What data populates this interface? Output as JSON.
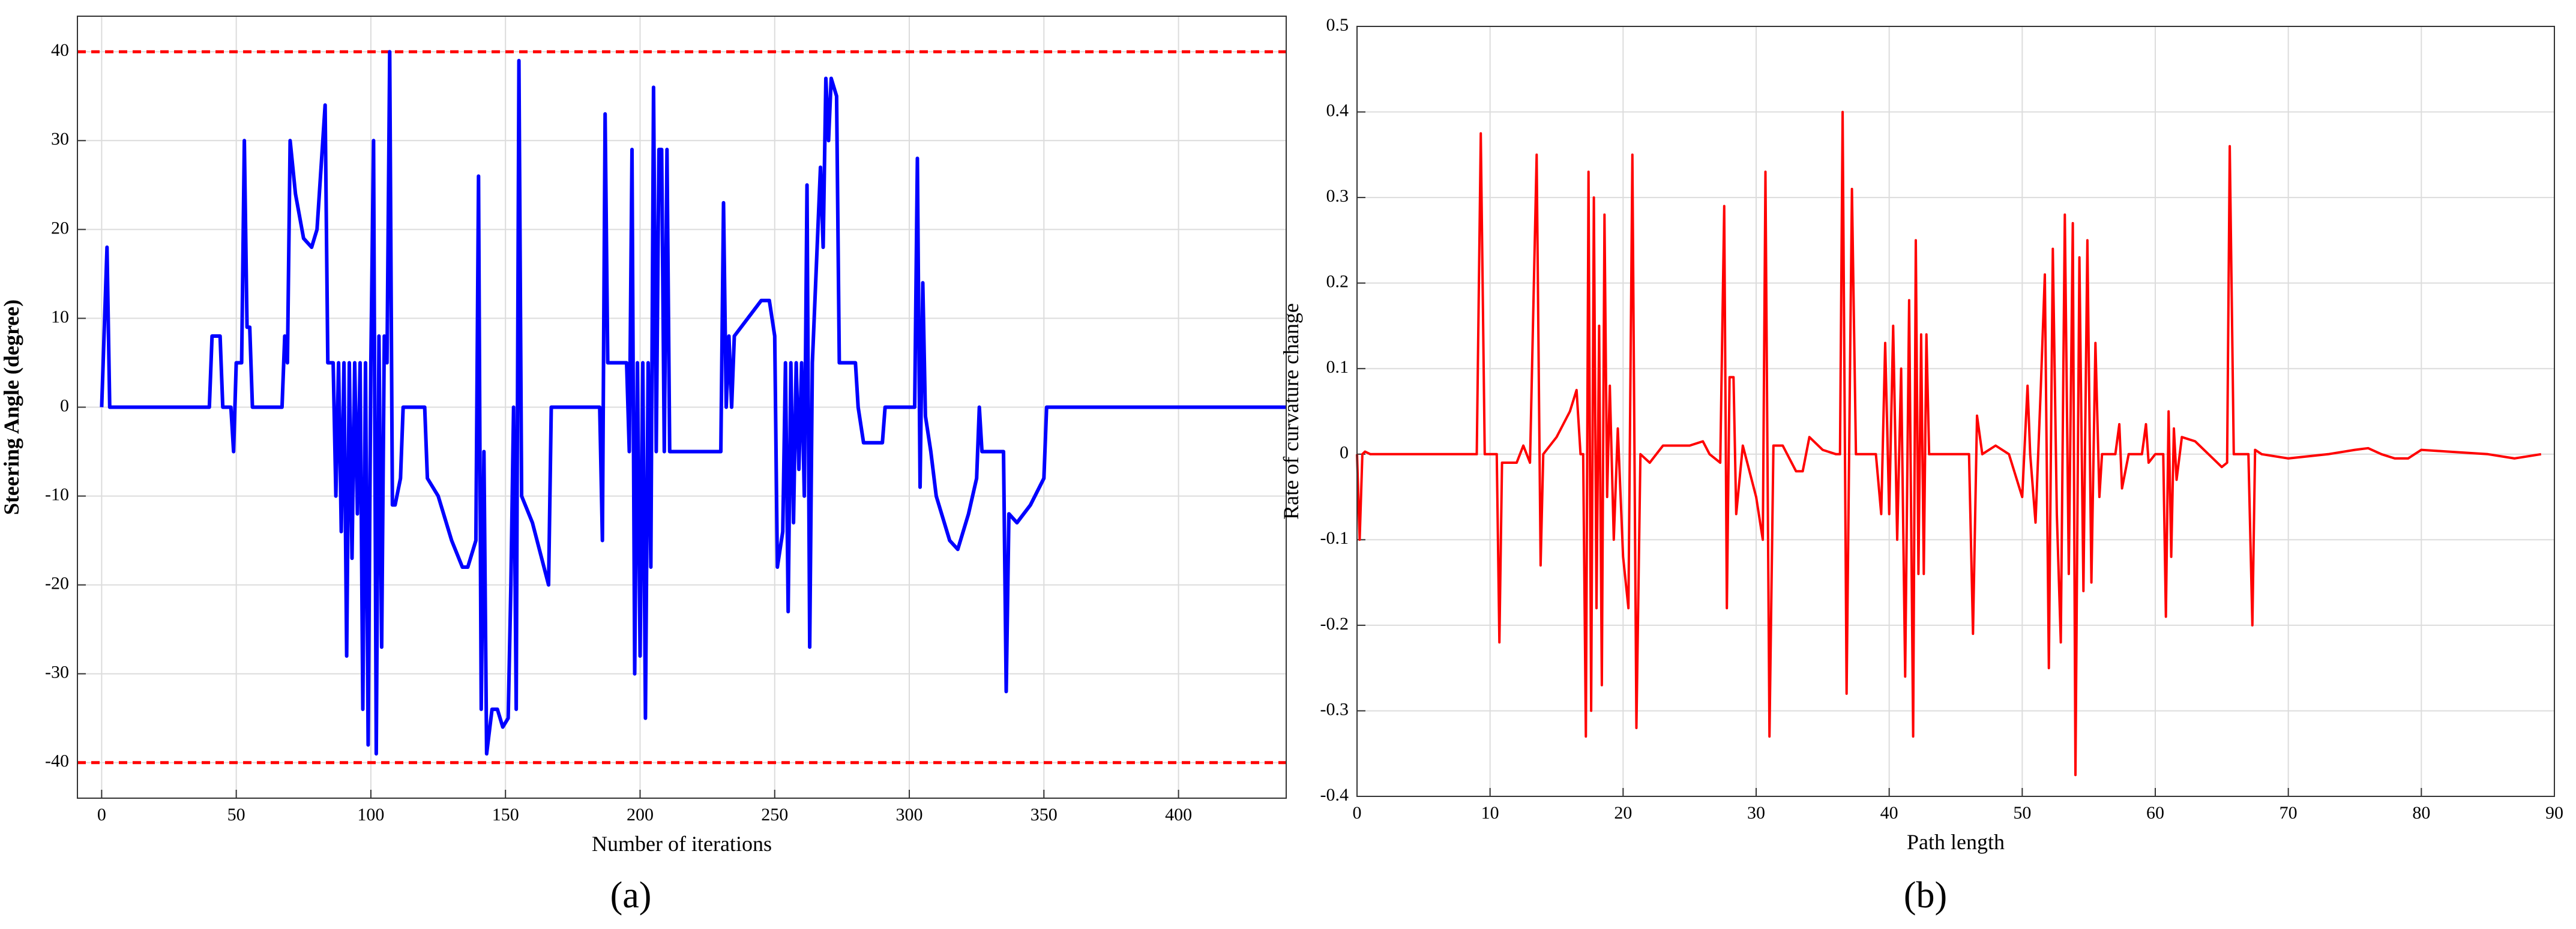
{
  "chart_data": [
    {
      "type": "line",
      "caption": "(a)",
      "xlabel": "Number of iterations",
      "ylabel": "Steering Angle (degree)",
      "xlim": [
        -9,
        440
      ],
      "ylim": [
        -44,
        44
      ],
      "xticks": [
        0,
        50,
        100,
        150,
        200,
        250,
        300,
        350,
        400
      ],
      "yticks": [
        -40,
        -30,
        -20,
        -10,
        0,
        10,
        20,
        30,
        40
      ],
      "grid": true,
      "color": "#0000ff",
      "hlines": [
        {
          "value": 40,
          "color": "#ff0000",
          "style": "dashed"
        },
        {
          "value": -40,
          "color": "#ff0000",
          "style": "dashed"
        }
      ],
      "x": [
        0,
        2,
        3,
        40,
        41,
        44,
        45,
        48,
        49,
        50,
        52,
        53,
        54,
        55,
        56,
        67,
        68,
        69,
        70,
        72,
        75,
        78,
        80,
        83,
        84,
        86,
        87,
        88,
        89,
        90,
        91,
        92,
        93,
        94,
        95,
        96,
        97,
        98,
        99,
        100,
        101,
        102,
        103,
        104,
        105,
        106,
        107,
        108,
        109,
        111,
        112,
        120,
        121,
        125,
        130,
        134,
        136,
        139,
        140,
        141,
        142,
        143,
        145,
        147,
        149,
        151,
        152,
        153,
        154,
        155,
        156,
        160,
        166,
        167,
        185,
        186,
        187,
        188,
        195,
        196,
        197,
        198,
        199,
        200,
        201,
        202,
        203,
        204,
        205,
        206,
        207,
        208,
        209,
        210,
        211,
        230,
        231,
        232,
        233,
        234,
        235,
        240,
        245,
        248,
        250,
        251,
        253,
        254,
        255,
        256,
        257,
        258,
        259,
        260,
        261,
        262,
        263,
        264,
        267,
        268,
        269,
        270,
        271,
        273,
        274,
        280,
        281,
        283,
        290,
        291,
        302,
        303,
        304,
        305,
        306,
        308,
        310,
        315,
        318,
        322,
        325,
        326,
        327,
        335,
        336,
        337,
        340,
        345,
        350,
        351,
        440
      ],
      "values": [
        0,
        18,
        0,
        0,
        8,
        8,
        0,
        0,
        -5,
        5,
        5,
        30,
        9,
        9,
        0,
        0,
        8,
        5,
        30,
        24,
        19,
        18,
        20,
        34,
        5,
        5,
        -10,
        5,
        -14,
        5,
        -28,
        5,
        -17,
        5,
        -12,
        5,
        -34,
        5,
        -38,
        5,
        30,
        -39,
        8,
        -27,
        8,
        5,
        40,
        -11,
        -11,
        -8,
        0,
        0,
        -8,
        -10,
        -15,
        -18,
        -18,
        -15,
        26,
        -34,
        -5,
        -39,
        -34,
        -34,
        -36,
        -35,
        -20,
        0,
        -34,
        39,
        -10,
        -13,
        -20,
        0,
        0,
        -15,
        33,
        5,
        5,
        -5,
        29,
        -30,
        5,
        -28,
        5,
        -35,
        5,
        -18,
        36,
        -5,
        29,
        29,
        -5,
        29,
        -5,
        -5,
        23,
        0,
        8,
        0,
        8,
        10,
        12,
        12,
        8,
        -18,
        -14,
        5,
        -23,
        5,
        -13,
        5,
        -7,
        5,
        -10,
        25,
        -27,
        5,
        27,
        18,
        37,
        30,
        37,
        35,
        5,
        5,
        0,
        -4,
        -4,
        0,
        0,
        28,
        -9,
        14,
        -1,
        -5,
        -10,
        -15,
        -16,
        -12,
        -8,
        0,
        -5,
        -5,
        -32,
        -12,
        -13,
        -11,
        -8,
        0,
        0
      ]
    },
    {
      "type": "line",
      "caption": "(b)",
      "xlabel": "Path length",
      "ylabel": "Rate of curvature change",
      "xlim": [
        0,
        90
      ],
      "ylim": [
        -0.4,
        0.5
      ],
      "xticks": [
        0,
        10,
        20,
        30,
        40,
        50,
        60,
        70,
        80,
        90
      ],
      "yticks": [
        -0.4,
        -0.3,
        -0.2,
        -0.1,
        0,
        0.1,
        0.2,
        0.3,
        0.4,
        0.5
      ],
      "grid": true,
      "color": "#ff0000",
      "x": [
        0,
        0.2,
        0.4,
        0.6,
        1,
        9,
        9.3,
        9.6,
        10.5,
        10.7,
        10.9,
        12,
        12.5,
        13,
        13.5,
        13.8,
        14,
        15,
        16,
        16.5,
        16.8,
        17,
        17.2,
        17.4,
        17.6,
        17.8,
        18,
        18.2,
        18.4,
        18.6,
        18.8,
        19,
        19.3,
        19.6,
        20,
        20.4,
        20.7,
        21,
        21.3,
        22,
        23,
        25,
        26,
        26.5,
        27.3,
        27.6,
        27.8,
        28,
        28.3,
        28.5,
        29,
        29.5,
        30,
        30.5,
        30.7,
        31,
        31.3,
        32,
        33,
        33.5,
        34,
        35,
        36,
        36.3,
        36.5,
        36.8,
        37.2,
        37.5,
        39,
        39.4,
        39.7,
        40,
        40.3,
        40.6,
        40.9,
        41.2,
        41.5,
        41.8,
        42,
        42.2,
        42.4,
        42.6,
        42.8,
        43,
        46,
        46.3,
        46.6,
        47,
        48,
        49,
        50,
        50.4,
        50.6,
        51,
        51.4,
        51.7,
        52,
        52.3,
        52.6,
        52.9,
        53.2,
        53.5,
        53.8,
        54,
        54.3,
        54.6,
        54.9,
        55.2,
        55.5,
        55.8,
        56,
        57,
        57.3,
        57.5,
        58,
        59,
        59.3,
        59.5,
        60,
        60.6,
        60.8,
        61,
        61.2,
        61.4,
        61.6,
        62,
        63,
        64,
        65,
        65.4,
        65.6,
        65.9,
        67,
        67.3,
        67.5,
        68,
        70,
        73,
        75,
        76,
        77,
        78,
        79,
        80,
        82,
        85,
        87,
        89
      ],
      "values": [
        0,
        -0.1,
        0,
        0.003,
        0,
        0,
        0.375,
        0,
        0,
        -0.22,
        -0.01,
        -0.01,
        0.01,
        -0.01,
        0.35,
        -0.13,
        0,
        0.02,
        0.05,
        0.075,
        0,
        0,
        -0.33,
        0.33,
        -0.3,
        0.3,
        -0.18,
        0.15,
        -0.27,
        0.28,
        -0.05,
        0.08,
        -0.1,
        0.03,
        -0.12,
        -0.18,
        0.35,
        -0.32,
        0,
        -0.01,
        0.01,
        0.01,
        0.015,
        0,
        -0.01,
        0.29,
        -0.18,
        0.09,
        0.09,
        -0.07,
        0.01,
        -0.02,
        -0.05,
        -0.1,
        0.33,
        -0.33,
        0.01,
        0.01,
        -0.02,
        -0.02,
        0.02,
        0.005,
        0,
        0,
        0.4,
        -0.28,
        0.31,
        0,
        0,
        -0.07,
        0.13,
        -0.07,
        0.15,
        -0.1,
        0.1,
        -0.26,
        0.18,
        -0.33,
        0.25,
        -0.14,
        0.14,
        -0.14,
        0.14,
        0,
        0,
        -0.21,
        0.045,
        0,
        0.01,
        0,
        -0.05,
        0.08,
        0,
        -0.08,
        0.08,
        0.21,
        -0.25,
        0.24,
        -0.07,
        -0.22,
        0.28,
        -0.14,
        0.27,
        -0.375,
        0.23,
        -0.16,
        0.25,
        -0.15,
        0.13,
        -0.05,
        0,
        0,
        0.035,
        -0.04,
        0,
        0,
        0.035,
        -0.01,
        0,
        0,
        -0.19,
        0.05,
        -0.12,
        0.03,
        -0.03,
        0.02,
        0.015,
        0,
        -0.015,
        -0.01,
        0.36,
        0,
        0,
        -0.2,
        0.005,
        0,
        -0.005,
        0,
        0.005,
        0.007,
        0,
        -0.005,
        -0.005,
        0.005,
        0.003,
        0,
        -0.005,
        0
      ]
    }
  ]
}
